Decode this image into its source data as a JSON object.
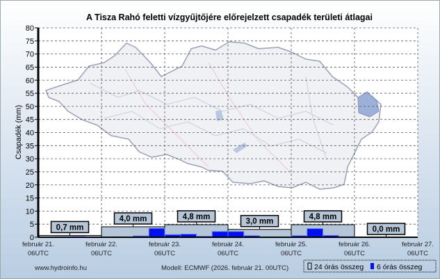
{
  "chart_data": {
    "type": "bar",
    "title": "A Tisza Rahó feletti vízgyűjtőjére előrejelzett csapadék területi átlagai",
    "ylabel": "Csapadék (mm)",
    "xlabel": "",
    "ylim": [
      0,
      80
    ],
    "yticks": [
      0,
      5,
      10,
      15,
      20,
      25,
      30,
      35,
      40,
      45,
      50,
      55,
      60,
      65,
      70,
      75,
      80
    ],
    "grid": true,
    "x_ticks": [
      {
        "date": "február 21.",
        "time": "06UTC"
      },
      {
        "date": "február 22.",
        "time": "06UTC"
      },
      {
        "date": "február 23.",
        "time": "06UTC"
      },
      {
        "date": "február 24.",
        "time": "06UTC"
      },
      {
        "date": "február 25.",
        "time": "06UTC"
      },
      {
        "date": "február 26.",
        "time": "06UTC"
      },
      {
        "date": "február 27.",
        "time": "06UTC"
      }
    ],
    "series": [
      {
        "name": "24 órás összeg",
        "color": "#b4c6d8",
        "values": [
          0.7,
          4.0,
          4.8,
          3.0,
          4.8,
          0.0
        ],
        "labels": [
          "0,7 mm",
          "4,0 mm",
          "4,8 mm",
          "3,0 mm",
          "4,8 mm",
          "0,0 mm"
        ]
      },
      {
        "name": "6 órás összeg",
        "color": "#0010ee",
        "values": [
          0.1,
          0.2,
          0.3,
          0.1,
          0,
          0.1,
          0.5,
          3.4,
          1.0,
          1.2,
          0.4,
          2.2,
          2.2,
          0.6,
          0.1,
          0.1,
          0.6,
          3.3,
          0.7,
          0.2,
          0,
          0,
          0,
          0
        ]
      }
    ],
    "legend_position": "bottom-right"
  },
  "footer": {
    "site": "www.hydroinfo.hu",
    "model": "Modell: ECMWF (2026. február 21. 00UTC)"
  }
}
